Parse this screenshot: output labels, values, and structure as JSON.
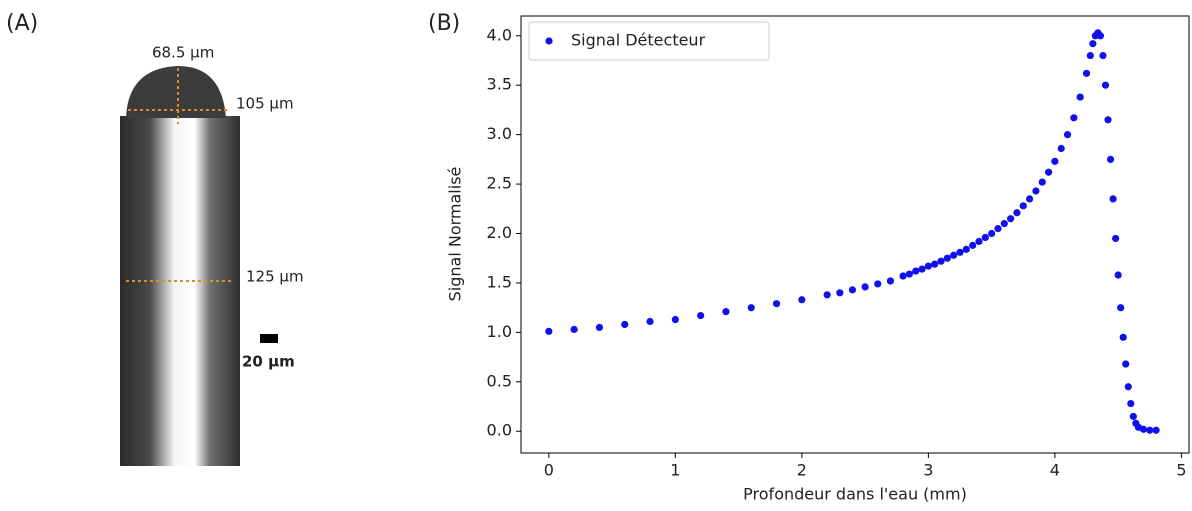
{
  "panel_a": {
    "label": "(A)",
    "annotations": [
      "68.5 µm",
      "105 µm",
      "125 µm"
    ],
    "scale_bar": "20 µm"
  },
  "chart_data": {
    "type": "scatter",
    "panel_label": "(B)",
    "x_label": "Profondeur dans l'eau (mm)",
    "y_label": "Signal Normalisé",
    "x": [
      0,
      0.2,
      0.4,
      0.6,
      0.8,
      1.0,
      1.2,
      1.4,
      1.6,
      1.8,
      2.0,
      2.2,
      2.3,
      2.4,
      2.5,
      2.6,
      2.7,
      2.8,
      2.85,
      2.9,
      2.95,
      3.0,
      3.05,
      3.1,
      3.15,
      3.2,
      3.25,
      3.3,
      3.35,
      3.4,
      3.45,
      3.5,
      3.55,
      3.6,
      3.65,
      3.7,
      3.75,
      3.8,
      3.85,
      3.9,
      3.95,
      4.0,
      4.05,
      4.1,
      4.15,
      4.2,
      4.25,
      4.28,
      4.3,
      4.32,
      4.34,
      4.36,
      4.38,
      4.4,
      4.42,
      4.44,
      4.46,
      4.48,
      4.5,
      4.52,
      4.54,
      4.56,
      4.58,
      4.6,
      4.62,
      4.64,
      4.66,
      4.7,
      4.75,
      4.8
    ],
    "series": [
      {
        "name": "Signal Détecteur",
        "color": "#1010ee",
        "values": [
          1.01,
          1.03,
          1.05,
          1.08,
          1.11,
          1.13,
          1.17,
          1.21,
          1.25,
          1.29,
          1.33,
          1.38,
          1.4,
          1.43,
          1.46,
          1.49,
          1.52,
          1.57,
          1.59,
          1.62,
          1.64,
          1.67,
          1.69,
          1.72,
          1.75,
          1.78,
          1.81,
          1.84,
          1.88,
          1.92,
          1.96,
          2.0,
          2.05,
          2.1,
          2.15,
          2.21,
          2.28,
          2.35,
          2.43,
          2.52,
          2.62,
          2.73,
          2.86,
          3.0,
          3.17,
          3.38,
          3.62,
          3.8,
          3.92,
          4.0,
          4.03,
          4.0,
          3.8,
          3.5,
          3.15,
          2.75,
          2.35,
          1.95,
          1.58,
          1.25,
          0.95,
          0.68,
          0.45,
          0.28,
          0.15,
          0.08,
          0.04,
          0.02,
          0.01,
          0.01
        ]
      }
    ],
    "xlim": [
      -0.22,
      5.06
    ],
    "ylim": [
      -0.22,
      4.2
    ],
    "xticks": [
      0,
      1,
      2,
      3,
      4,
      5
    ],
    "yticks": [
      {
        "value": 0,
        "label": "0.0"
      },
      0.5,
      {
        "value": 1,
        "label": "1.0"
      },
      1.5,
      {
        "value": 2,
        "label": "2.0"
      },
      2.5,
      {
        "value": 3,
        "label": "3.0"
      },
      3.5,
      {
        "value": 4,
        "label": "4.0"
      }
    ],
    "legend": "upper left"
  }
}
